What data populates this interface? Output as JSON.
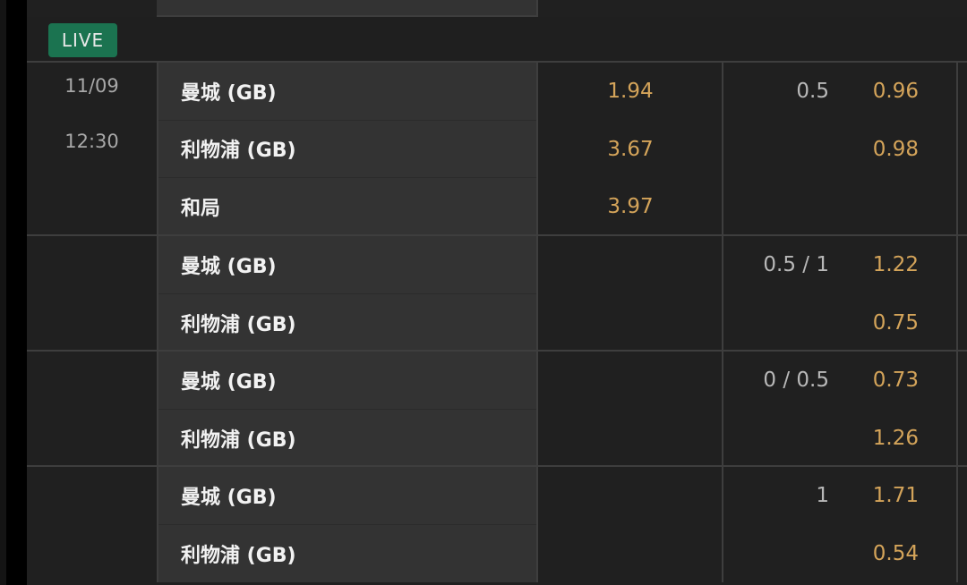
{
  "live_label": "LIVE",
  "match": {
    "date": "11/09",
    "time": "12:30"
  },
  "blocks": [
    {
      "rows": [
        {
          "team": "曼城 (GB)",
          "odds": "1.94",
          "line": "0.5",
          "price": "0.96"
        },
        {
          "team": "利物浦 (GB)",
          "odds": "3.67",
          "line": "",
          "price": "0.98"
        },
        {
          "team": "和局",
          "odds": "3.97",
          "line": "",
          "price": ""
        }
      ]
    },
    {
      "rows": [
        {
          "team": "曼城 (GB)",
          "odds": "",
          "line": "0.5 / 1",
          "price": "1.22"
        },
        {
          "team": "利物浦 (GB)",
          "odds": "",
          "line": "",
          "price": "0.75"
        }
      ]
    },
    {
      "rows": [
        {
          "team": "曼城 (GB)",
          "odds": "",
          "line": "0 / 0.5",
          "price": "0.73"
        },
        {
          "team": "利物浦 (GB)",
          "odds": "",
          "line": "",
          "price": "1.26"
        }
      ]
    },
    {
      "rows": [
        {
          "team": "曼城 (GB)",
          "odds": "",
          "line": "1",
          "price": "1.71"
        },
        {
          "team": "利物浦 (GB)",
          "odds": "",
          "line": "",
          "price": "0.54"
        }
      ]
    }
  ],
  "colors": {
    "live_badge": "#1b7350",
    "odds": "#d4a45a",
    "team_bg": "#333333"
  }
}
